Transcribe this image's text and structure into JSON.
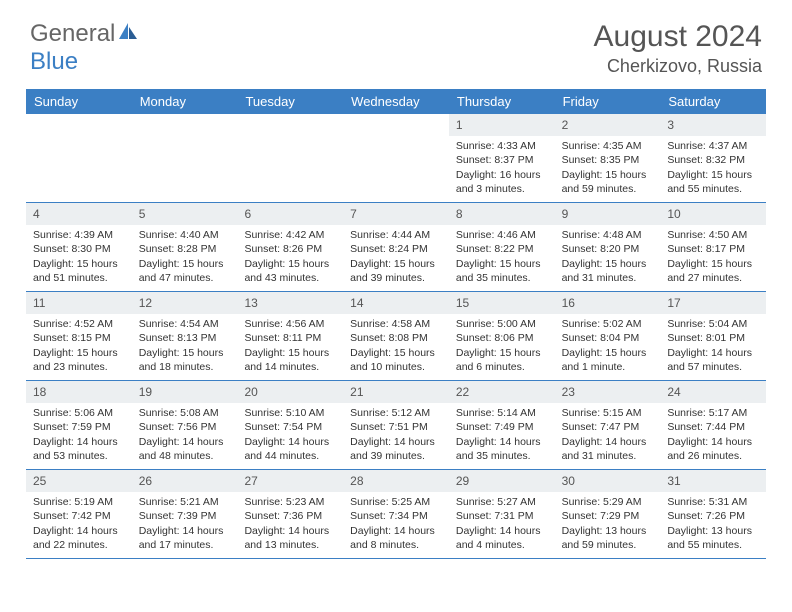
{
  "logo": {
    "general": "General",
    "blue": "Blue"
  },
  "title": "August 2024",
  "location": "Cherkizovo, Russia",
  "colors": {
    "header_bg": "#3b7fc4",
    "header_text": "#ffffff",
    "daynum_bg": "#eceff1",
    "text": "#333333",
    "border": "#3b7fc4",
    "background": "#ffffff"
  },
  "typography": {
    "title_fontsize": 30,
    "location_fontsize": 18,
    "dayheader_fontsize": 13,
    "daynum_fontsize": 12,
    "body_fontsize": 10.5
  },
  "dayNames": [
    "Sunday",
    "Monday",
    "Tuesday",
    "Wednesday",
    "Thursday",
    "Friday",
    "Saturday"
  ],
  "weeks": [
    [
      null,
      null,
      null,
      null,
      {
        "n": "1",
        "sr": "4:33 AM",
        "ss": "8:37 PM",
        "dl": "16 hours and 3 minutes."
      },
      {
        "n": "2",
        "sr": "4:35 AM",
        "ss": "8:35 PM",
        "dl": "15 hours and 59 minutes."
      },
      {
        "n": "3",
        "sr": "4:37 AM",
        "ss": "8:32 PM",
        "dl": "15 hours and 55 minutes."
      }
    ],
    [
      {
        "n": "4",
        "sr": "4:39 AM",
        "ss": "8:30 PM",
        "dl": "15 hours and 51 minutes."
      },
      {
        "n": "5",
        "sr": "4:40 AM",
        "ss": "8:28 PM",
        "dl": "15 hours and 47 minutes."
      },
      {
        "n": "6",
        "sr": "4:42 AM",
        "ss": "8:26 PM",
        "dl": "15 hours and 43 minutes."
      },
      {
        "n": "7",
        "sr": "4:44 AM",
        "ss": "8:24 PM",
        "dl": "15 hours and 39 minutes."
      },
      {
        "n": "8",
        "sr": "4:46 AM",
        "ss": "8:22 PM",
        "dl": "15 hours and 35 minutes."
      },
      {
        "n": "9",
        "sr": "4:48 AM",
        "ss": "8:20 PM",
        "dl": "15 hours and 31 minutes."
      },
      {
        "n": "10",
        "sr": "4:50 AM",
        "ss": "8:17 PM",
        "dl": "15 hours and 27 minutes."
      }
    ],
    [
      {
        "n": "11",
        "sr": "4:52 AM",
        "ss": "8:15 PM",
        "dl": "15 hours and 23 minutes."
      },
      {
        "n": "12",
        "sr": "4:54 AM",
        "ss": "8:13 PM",
        "dl": "15 hours and 18 minutes."
      },
      {
        "n": "13",
        "sr": "4:56 AM",
        "ss": "8:11 PM",
        "dl": "15 hours and 14 minutes."
      },
      {
        "n": "14",
        "sr": "4:58 AM",
        "ss": "8:08 PM",
        "dl": "15 hours and 10 minutes."
      },
      {
        "n": "15",
        "sr": "5:00 AM",
        "ss": "8:06 PM",
        "dl": "15 hours and 6 minutes."
      },
      {
        "n": "16",
        "sr": "5:02 AM",
        "ss": "8:04 PM",
        "dl": "15 hours and 1 minute."
      },
      {
        "n": "17",
        "sr": "5:04 AM",
        "ss": "8:01 PM",
        "dl": "14 hours and 57 minutes."
      }
    ],
    [
      {
        "n": "18",
        "sr": "5:06 AM",
        "ss": "7:59 PM",
        "dl": "14 hours and 53 minutes."
      },
      {
        "n": "19",
        "sr": "5:08 AM",
        "ss": "7:56 PM",
        "dl": "14 hours and 48 minutes."
      },
      {
        "n": "20",
        "sr": "5:10 AM",
        "ss": "7:54 PM",
        "dl": "14 hours and 44 minutes."
      },
      {
        "n": "21",
        "sr": "5:12 AM",
        "ss": "7:51 PM",
        "dl": "14 hours and 39 minutes."
      },
      {
        "n": "22",
        "sr": "5:14 AM",
        "ss": "7:49 PM",
        "dl": "14 hours and 35 minutes."
      },
      {
        "n": "23",
        "sr": "5:15 AM",
        "ss": "7:47 PM",
        "dl": "14 hours and 31 minutes."
      },
      {
        "n": "24",
        "sr": "5:17 AM",
        "ss": "7:44 PM",
        "dl": "14 hours and 26 minutes."
      }
    ],
    [
      {
        "n": "25",
        "sr": "5:19 AM",
        "ss": "7:42 PM",
        "dl": "14 hours and 22 minutes."
      },
      {
        "n": "26",
        "sr": "5:21 AM",
        "ss": "7:39 PM",
        "dl": "14 hours and 17 minutes."
      },
      {
        "n": "27",
        "sr": "5:23 AM",
        "ss": "7:36 PM",
        "dl": "14 hours and 13 minutes."
      },
      {
        "n": "28",
        "sr": "5:25 AM",
        "ss": "7:34 PM",
        "dl": "14 hours and 8 minutes."
      },
      {
        "n": "29",
        "sr": "5:27 AM",
        "ss": "7:31 PM",
        "dl": "14 hours and 4 minutes."
      },
      {
        "n": "30",
        "sr": "5:29 AM",
        "ss": "7:29 PM",
        "dl": "13 hours and 59 minutes."
      },
      {
        "n": "31",
        "sr": "5:31 AM",
        "ss": "7:26 PM",
        "dl": "13 hours and 55 minutes."
      }
    ]
  ],
  "labels": {
    "sunrise": "Sunrise:",
    "sunset": "Sunset:",
    "daylight": "Daylight:"
  }
}
